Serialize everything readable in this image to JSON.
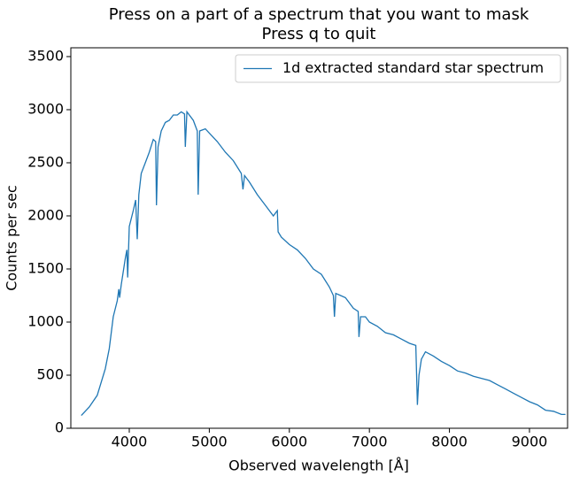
{
  "chart_data": {
    "type": "line",
    "title": [
      "Press on a part of a spectrum that you want to mask",
      "Press q to quit"
    ],
    "xlabel": "Observed wavelength [Å]",
    "ylabel": "Counts per sec",
    "legend": "upper right",
    "xlim": [
      3270,
      9476
    ],
    "ylim": [
      0,
      3583
    ],
    "xticks": [
      4000,
      5000,
      6000,
      7000,
      8000,
      9000
    ],
    "yticks": [
      0,
      500,
      1000,
      1500,
      2000,
      2500,
      3000,
      3500
    ],
    "x": [
      3400,
      3500,
      3600,
      3700,
      3750,
      3800,
      3850,
      3870,
      3880,
      3900,
      3950,
      3970,
      3980,
      4000,
      4050,
      4080,
      4100,
      4120,
      4150,
      4200,
      4250,
      4300,
      4330,
      4340,
      4360,
      4400,
      4450,
      4500,
      4550,
      4600,
      4650,
      4690,
      4700,
      4720,
      4800,
      4850,
      4861,
      4880,
      4950,
      5000,
      5100,
      5200,
      5300,
      5400,
      5420,
      5440,
      5500,
      5600,
      5700,
      5800,
      5850,
      5860,
      5900,
      6000,
      6100,
      6200,
      6300,
      6400,
      6500,
      6550,
      6563,
      6580,
      6700,
      6800,
      6860,
      6870,
      6890,
      6950,
      7000,
      7100,
      7200,
      7300,
      7400,
      7500,
      7580,
      7600,
      7620,
      7650,
      7700,
      7800,
      7900,
      8000,
      8100,
      8200,
      8300,
      8400,
      8500,
      8600,
      8700,
      8800,
      8900,
      9000,
      9100,
      9200,
      9300,
      9400,
      9450
    ],
    "series": [
      {
        "name": "1d extracted standard star spectrum",
        "color": "#1f77b4",
        "values": [
          120,
          200,
          310,
          560,
          750,
          1050,
          1200,
          1310,
          1230,
          1350,
          1600,
          1680,
          1420,
          1900,
          2050,
          2150,
          1780,
          2200,
          2400,
          2500,
          2600,
          2720,
          2700,
          2100,
          2650,
          2800,
          2880,
          2900,
          2950,
          2950,
          2980,
          2960,
          2650,
          2980,
          2900,
          2800,
          2200,
          2800,
          2820,
          2780,
          2700,
          2600,
          2520,
          2400,
          2250,
          2380,
          2320,
          2200,
          2100,
          2000,
          2050,
          1850,
          1800,
          1730,
          1680,
          1600,
          1500,
          1450,
          1330,
          1250,
          1050,
          1270,
          1230,
          1130,
          1100,
          860,
          1050,
          1050,
          1000,
          960,
          900,
          880,
          840,
          800,
          780,
          220,
          500,
          650,
          720,
          680,
          630,
          590,
          540,
          520,
          490,
          470,
          450,
          410,
          370,
          330,
          290,
          250,
          220,
          170,
          160,
          130,
          130
        ]
      }
    ]
  }
}
